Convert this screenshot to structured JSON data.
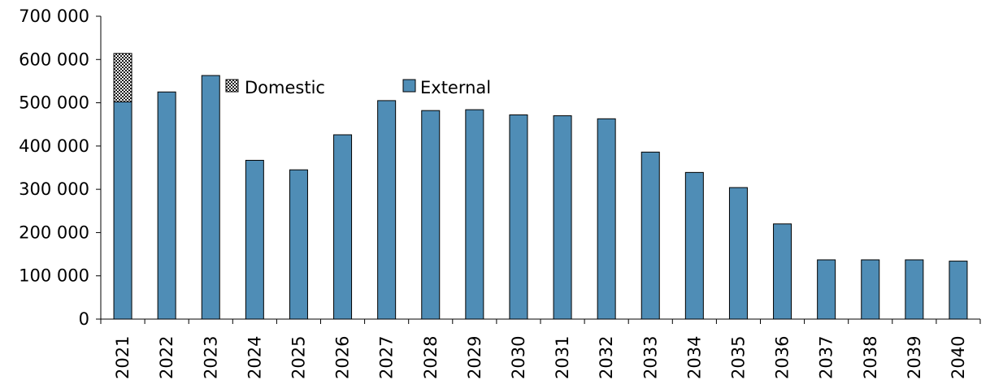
{
  "chart_data": {
    "type": "bar",
    "stacked": true,
    "categories": [
      "2021",
      "2022",
      "2023",
      "2024",
      "2025",
      "2026",
      "2027",
      "2028",
      "2029",
      "2030",
      "2031",
      "2032",
      "2033",
      "2034",
      "2035",
      "2036",
      "2037",
      "2038",
      "2039",
      "2040"
    ],
    "series": [
      {
        "name": "External",
        "color": "#4f8db6",
        "pattern": "solid",
        "values": [
          502000,
          525000,
          563000,
          367000,
          345000,
          426000,
          505000,
          482000,
          484000,
          472000,
          470000,
          463000,
          386000,
          339000,
          304000,
          220000,
          137000,
          137000,
          137000,
          134000
        ]
      },
      {
        "name": "Domestic",
        "color": "#ffffff",
        "pattern": "checkered",
        "values": [
          112000,
          0,
          0,
          0,
          0,
          0,
          0,
          0,
          0,
          0,
          0,
          0,
          0,
          0,
          0,
          0,
          0,
          0,
          0,
          0
        ]
      }
    ],
    "ylim": [
      0,
      700000
    ],
    "yticks": [
      0,
      100000,
      200000,
      300000,
      400000,
      500000,
      600000,
      700000
    ],
    "ytick_labels": [
      "0",
      "100 000",
      "200 000",
      "300 000",
      "400 000",
      "500 000",
      "600 000",
      "700 000"
    ],
    "xtick_rotation": "vertical",
    "legend": {
      "placement": "top-center, inside plot",
      "entries": [
        "Domestic",
        "External"
      ]
    },
    "grid": false,
    "title": "",
    "xlabel": "",
    "ylabel": ""
  }
}
